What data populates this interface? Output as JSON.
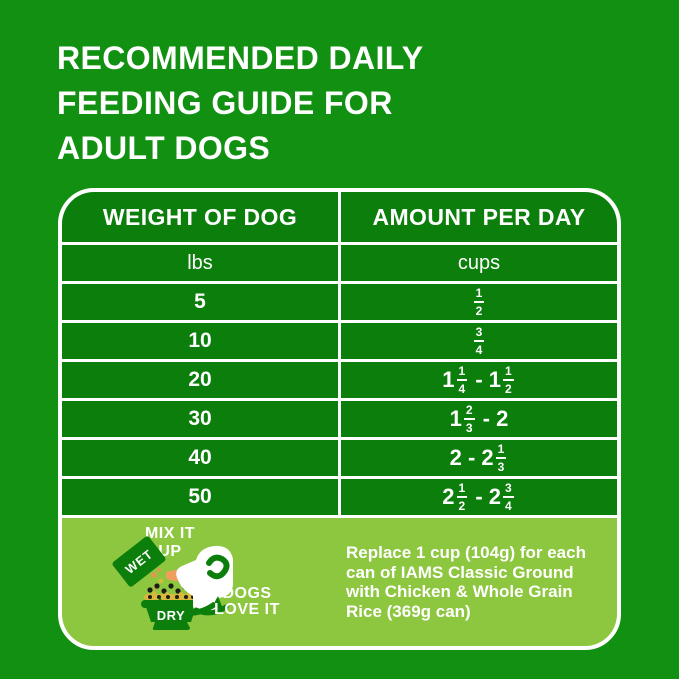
{
  "colors": {
    "page_green": "#129012",
    "cell_green": "#0C7E0C",
    "panel_green": "#8DC63F",
    "text_white": "#FFFFFF",
    "kibble_black": "#1E1C16",
    "kibble_gold": "#D9B93C",
    "tongue_orange": "#EF9E5E"
  },
  "title": "RECOMMENDED DAILY\nFEEDING GUIDE FOR\nADULT DOGS",
  "table": {
    "columns": [
      "WEIGHT OF DOG",
      "AMOUNT PER DAY"
    ],
    "units": [
      "lbs",
      "cups"
    ],
    "rows": [
      {
        "weight": "5",
        "amount": [
          {
            "frac": [
              "1",
              "2"
            ]
          }
        ]
      },
      {
        "weight": "10",
        "amount": [
          {
            "frac": [
              "3",
              "4"
            ]
          }
        ]
      },
      {
        "weight": "20",
        "amount": [
          {
            "text": "1"
          },
          {
            "frac": [
              "1",
              "4"
            ]
          },
          {
            "text": " - 1"
          },
          {
            "frac": [
              "1",
              "2"
            ]
          }
        ]
      },
      {
        "weight": "30",
        "amount": [
          {
            "text": "1"
          },
          {
            "frac": [
              "2",
              "3"
            ]
          },
          {
            "text": " - 2"
          }
        ]
      },
      {
        "weight": "40",
        "amount": [
          {
            "text": "2 - 2"
          },
          {
            "frac": [
              "1",
              "3"
            ]
          }
        ]
      },
      {
        "weight": "50",
        "amount": [
          {
            "text": "2"
          },
          {
            "frac": [
              "1",
              "2"
            ]
          },
          {
            "text": " - 2"
          },
          {
            "frac": [
              "3",
              "4"
            ]
          }
        ]
      }
    ]
  },
  "footer": {
    "mix_it_up": "MIX IT\nUP",
    "wet_label": "WET",
    "dry_label": "DRY",
    "dogs_love_it": "DOGS\nLOVE IT",
    "note": "Replace 1 cup (104g) for each\ncan of IAMS Classic Ground\nwith Chicken & Whole Grain\nRice (369g can)"
  }
}
